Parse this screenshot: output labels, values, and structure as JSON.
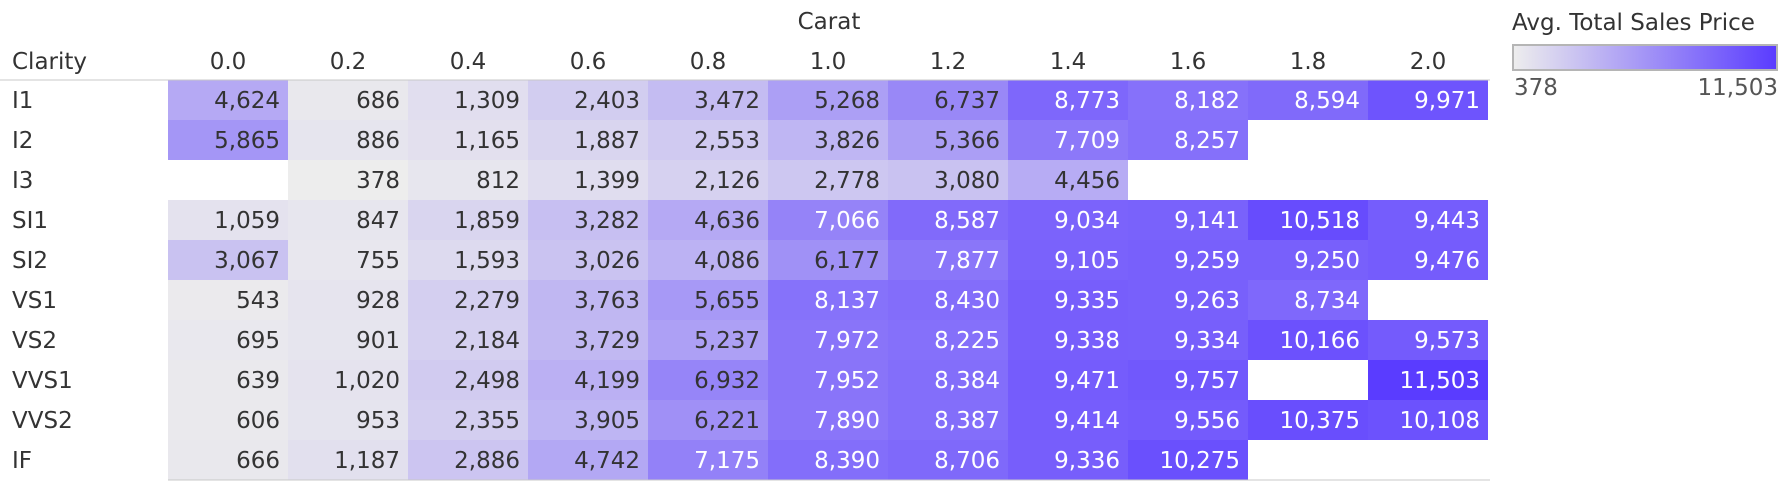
{
  "chart_data": {
    "type": "heatmap",
    "title": "",
    "column_header": "Carat",
    "row_header": "Clarity",
    "x_categories": [
      "0.0",
      "0.2",
      "0.4",
      "0.6",
      "0.8",
      "1.0",
      "1.2",
      "1.4",
      "1.6",
      "1.8",
      "2.0"
    ],
    "y_categories": [
      "I1",
      "I2",
      "I3",
      "SI1",
      "SI2",
      "VS1",
      "VS2",
      "VVS1",
      "VVS2",
      "IF"
    ],
    "values": [
      [
        4624,
        686,
        1309,
        2403,
        3472,
        5268,
        6737,
        8773,
        8182,
        8594,
        9971
      ],
      [
        5865,
        886,
        1165,
        1887,
        2553,
        3826,
        5366,
        7709,
        8257,
        null,
        null
      ],
      [
        null,
        378,
        812,
        1399,
        2126,
        2778,
        3080,
        4456,
        null,
        null,
        null
      ],
      [
        1059,
        847,
        1859,
        3282,
        4636,
        7066,
        8587,
        9034,
        9141,
        10518,
        9443
      ],
      [
        3067,
        755,
        1593,
        3026,
        4086,
        6177,
        7877,
        9105,
        9259,
        9250,
        9476
      ],
      [
        543,
        928,
        2279,
        3763,
        5655,
        8137,
        8430,
        9335,
        9263,
        8734,
        null
      ],
      [
        695,
        901,
        2184,
        3729,
        5237,
        7972,
        8225,
        9338,
        9334,
        10166,
        9573
      ],
      [
        639,
        1020,
        2498,
        4199,
        6932,
        7952,
        8384,
        9471,
        9757,
        null,
        11503
      ],
      [
        606,
        953,
        2355,
        3905,
        6221,
        7890,
        8387,
        9414,
        9556,
        10375,
        10108
      ],
      [
        666,
        1187,
        2886,
        4742,
        7175,
        8390,
        8706,
        9336,
        10275,
        null,
        null
      ]
    ],
    "color_scale": {
      "title": "Avg. Total Sales Price",
      "min": 378,
      "max": 11503,
      "min_label": "378",
      "max_label": "11,503",
      "low_color": "#ededed",
      "high_color": "#5a3cff"
    },
    "grid": false,
    "legend_position": "top-right"
  }
}
